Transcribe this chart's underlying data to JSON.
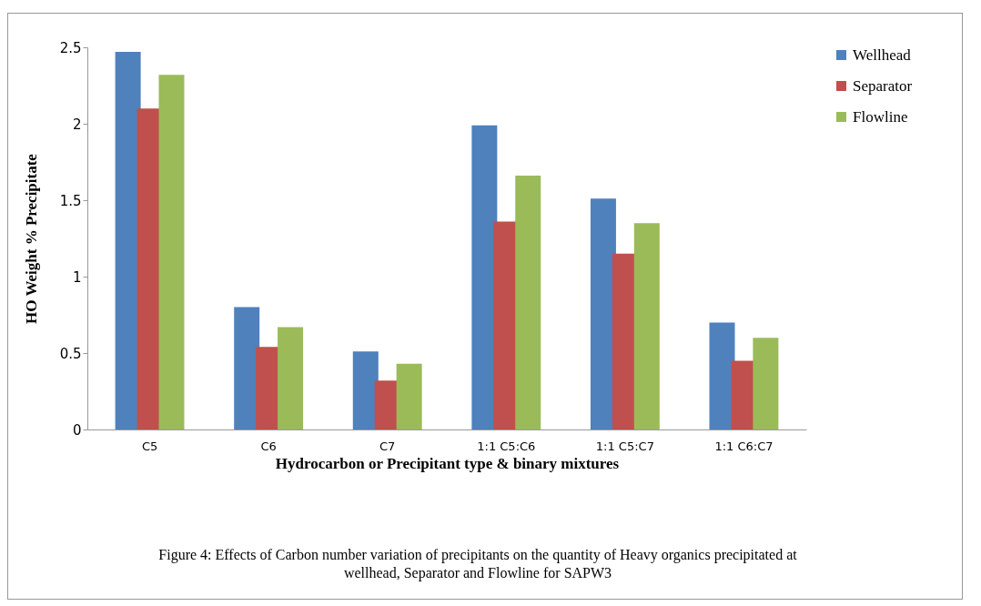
{
  "chart_data": {
    "type": "bar",
    "xlabel": "Hydrocarbon or Precipitant type &  binary mixtures",
    "ylabel": "HO  Weight %  Precipitate",
    "categories": [
      "C5",
      "C6",
      "C7",
      "1:1 C5:C6",
      "1:1 C5:C7",
      "1:1 C6:C7"
    ],
    "series": [
      {
        "name": "Wellhead",
        "color": "#4f81bd",
        "values": [
          2.47,
          0.8,
          0.51,
          1.99,
          1.51,
          0.7
        ]
      },
      {
        "name": "Separator",
        "color": "#c0504d",
        "values": [
          2.1,
          0.54,
          0.32,
          1.36,
          1.15,
          0.45
        ]
      },
      {
        "name": "Flowline",
        "color": "#9bbb59",
        "values": [
          2.32,
          0.67,
          0.43,
          1.66,
          1.35,
          0.6
        ]
      }
    ],
    "ylim": [
      0,
      2.5
    ],
    "yticks": [
      0,
      0.5,
      1,
      1.5,
      2,
      2.5
    ],
    "grid": false,
    "legend": "right",
    "annotations": [
      "Figure 4: Effects of Carbon number variation of precipitants on the quantity of Heavy organics precipitated at wellhead, Separator and Flowline for SAPW3"
    ]
  }
}
